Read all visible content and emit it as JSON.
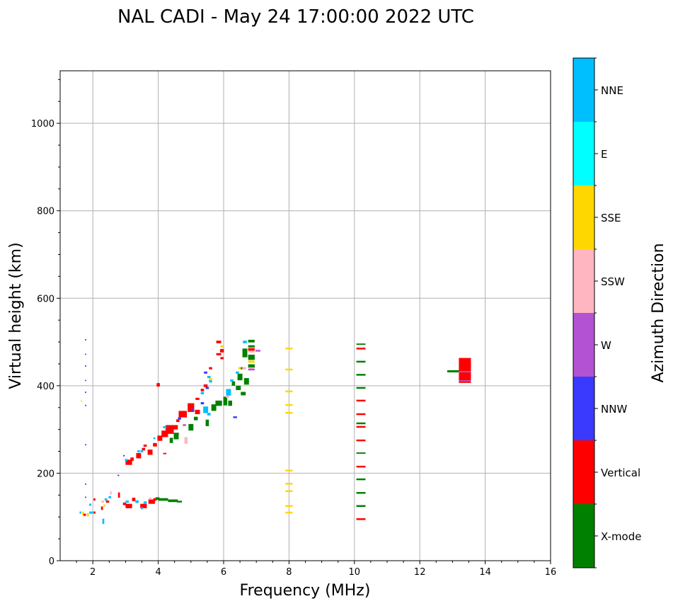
{
  "chart_data": {
    "type": "scatter",
    "title": "NAL CADI - May 24 17:00:00 2022 UTC",
    "xlabel": "Frequency (MHz)",
    "ylabel": "Virtual height (km)",
    "xlim": [
      1,
      16
    ],
    "ylim": [
      0,
      1120
    ],
    "xticks": [
      "2",
      "4",
      "6",
      "8",
      "10",
      "12",
      "14",
      "16"
    ],
    "yticks": [
      "0",
      "200",
      "400",
      "600",
      "800",
      "1000"
    ],
    "grid": true,
    "colorbar": {
      "label": "Azimuth Direction",
      "categories": [
        "X-mode",
        "Vertical",
        "NNW",
        "W",
        "SSW",
        "SSE",
        "E",
        "NNE"
      ],
      "colors": [
        "#008000",
        "#ff0000",
        "#3a3aff",
        "#b452d4",
        "#ffb6c1",
        "#ffd700",
        "#00ffff",
        "#00bfff"
      ]
    },
    "points_format": [
      "freq_MHz",
      "height_km",
      "direction_index",
      "freq_width_MHz",
      "height_span_km"
    ],
    "points": [
      [
        1.78,
        505,
        2,
        0.04,
        3
      ],
      [
        1.78,
        472,
        2,
        0.04,
        2
      ],
      [
        1.78,
        445,
        2,
        0.04,
        3
      ],
      [
        1.78,
        412,
        2,
        0.04,
        2
      ],
      [
        1.78,
        385,
        2,
        0.04,
        3
      ],
      [
        1.78,
        355,
        2,
        0.04,
        3
      ],
      [
        1.65,
        365,
        5,
        0.04,
        3
      ],
      [
        1.78,
        265,
        2,
        0.04,
        3
      ],
      [
        1.78,
        175,
        2,
        0.04,
        3
      ],
      [
        1.78,
        145,
        2,
        0.04,
        3
      ],
      [
        2.78,
        195,
        2,
        0.05,
        3
      ],
      [
        2.95,
        240,
        2,
        0.05,
        3
      ],
      [
        1.7,
        108,
        5,
        0.05,
        8
      ],
      [
        1.62,
        110,
        7,
        0.05,
        5
      ],
      [
        1.75,
        105,
        1,
        0.08,
        5
      ],
      [
        1.85,
        105,
        5,
        0.06,
        8
      ],
      [
        1.95,
        110,
        7,
        0.12,
        5
      ],
      [
        2.05,
        110,
        1,
        0.06,
        5
      ],
      [
        2.05,
        140,
        1,
        0.06,
        5
      ],
      [
        1.92,
        128,
        7,
        0.06,
        5
      ],
      [
        2.3,
        135,
        4,
        0.08,
        5
      ],
      [
        2.28,
        120,
        1,
        0.06,
        8
      ],
      [
        2.32,
        90,
        7,
        0.06,
        12
      ],
      [
        2.35,
        126,
        5,
        0.06,
        5
      ],
      [
        2.45,
        135,
        1,
        0.1,
        5
      ],
      [
        2.55,
        155,
        4,
        0.05,
        8
      ],
      [
        2.52,
        145,
        7,
        0.08,
        5
      ],
      [
        2.4,
        140,
        7,
        0.08,
        5
      ],
      [
        2.8,
        150,
        1,
        0.06,
        12
      ],
      [
        2.97,
        130,
        1,
        0.1,
        6
      ],
      [
        3.1,
        125,
        1,
        0.2,
        10
      ],
      [
        3.05,
        135,
        7,
        0.1,
        5
      ],
      [
        3.25,
        140,
        1,
        0.1,
        8
      ],
      [
        3.35,
        135,
        7,
        0.1,
        6
      ],
      [
        3.55,
        125,
        1,
        0.2,
        10
      ],
      [
        3.5,
        120,
        7,
        0.06,
        5
      ],
      [
        3.6,
        133,
        7,
        0.1,
        5
      ],
      [
        3.8,
        135,
        1,
        0.2,
        10
      ],
      [
        3.9,
        140,
        1,
        0.1,
        6
      ],
      [
        3.75,
        142,
        4,
        0.08,
        5
      ],
      [
        3.98,
        142,
        0,
        0.12,
        6
      ],
      [
        4.15,
        140,
        0,
        0.3,
        6
      ],
      [
        4.45,
        137,
        0,
        0.3,
        6
      ],
      [
        4.65,
        135,
        0,
        0.15,
        4
      ],
      [
        3.1,
        225,
        1,
        0.2,
        12
      ],
      [
        3.2,
        232,
        1,
        0.1,
        8
      ],
      [
        3.02,
        230,
        7,
        0.08,
        5
      ],
      [
        3.4,
        240,
        1,
        0.15,
        12
      ],
      [
        3.4,
        250,
        7,
        0.08,
        5
      ],
      [
        3.55,
        255,
        1,
        0.1,
        6
      ],
      [
        3.6,
        263,
        1,
        0.1,
        5
      ],
      [
        3.5,
        250,
        7,
        0.08,
        5
      ],
      [
        3.75,
        248,
        1,
        0.15,
        12
      ],
      [
        3.9,
        265,
        1,
        0.12,
        8
      ],
      [
        3.88,
        280,
        7,
        0.06,
        4
      ],
      [
        4.05,
        280,
        1,
        0.15,
        12
      ],
      [
        4.2,
        290,
        1,
        0.2,
        15
      ],
      [
        4.35,
        300,
        1,
        0.25,
        20
      ],
      [
        4.2,
        305,
        7,
        0.1,
        5
      ],
      [
        4.5,
        305,
        1,
        0.2,
        10
      ],
      [
        4.6,
        320,
        1,
        0.1,
        6
      ],
      [
        4.75,
        335,
        1,
        0.25,
        15
      ],
      [
        4.65,
        325,
        2,
        0.1,
        5
      ],
      [
        4.6,
        290,
        4,
        0.1,
        5
      ],
      [
        4.4,
        275,
        0,
        0.1,
        12
      ],
      [
        4.55,
        285,
        0,
        0.15,
        15
      ],
      [
        4.85,
        275,
        4,
        0.1,
        15
      ],
      [
        5.0,
        305,
        0,
        0.15,
        15
      ],
      [
        5.0,
        350,
        1,
        0.2,
        20
      ],
      [
        5.05,
        345,
        2,
        0.1,
        5
      ],
      [
        4.8,
        310,
        3,
        0.1,
        4
      ],
      [
        5.2,
        340,
        1,
        0.15,
        10
      ],
      [
        5.15,
        325,
        0,
        0.12,
        8
      ],
      [
        5.35,
        360,
        2,
        0.1,
        5
      ],
      [
        5.45,
        345,
        7,
        0.15,
        15
      ],
      [
        5.5,
        315,
        0,
        0.1,
        15
      ],
      [
        5.55,
        335,
        7,
        0.1,
        6
      ],
      [
        5.7,
        350,
        0,
        0.15,
        15
      ],
      [
        5.85,
        360,
        0,
        0.2,
        12
      ],
      [
        5.2,
        370,
        1,
        0.12,
        5
      ],
      [
        5.35,
        390,
        1,
        0.1,
        6
      ],
      [
        5.35,
        383,
        7,
        0.1,
        5
      ],
      [
        5.45,
        400,
        1,
        0.12,
        6
      ],
      [
        5.5,
        395,
        2,
        0.1,
        5
      ],
      [
        5.45,
        430,
        2,
        0.1,
        5
      ],
      [
        5.55,
        420,
        7,
        0.1,
        5
      ],
      [
        5.6,
        440,
        1,
        0.1,
        5
      ],
      [
        5.6,
        410,
        7,
        0.1,
        5
      ],
      [
        5.6,
        415,
        5,
        0.1,
        5
      ],
      [
        5.85,
        500,
        1,
        0.15,
        6
      ],
      [
        5.95,
        480,
        1,
        0.12,
        8
      ],
      [
        5.95,
        490,
        5,
        0.1,
        5
      ],
      [
        5.95,
        463,
        1,
        0.1,
        5
      ],
      [
        5.85,
        472,
        1,
        0.15,
        5
      ],
      [
        6.05,
        365,
        0,
        0.12,
        20
      ],
      [
        6.15,
        385,
        7,
        0.15,
        15
      ],
      [
        6.2,
        360,
        0,
        0.12,
        12
      ],
      [
        6.12,
        375,
        4,
        0.1,
        5
      ],
      [
        6.3,
        405,
        0,
        0.1,
        10
      ],
      [
        6.25,
        412,
        7,
        0.1,
        5
      ],
      [
        6.45,
        395,
        0,
        0.15,
        10
      ],
      [
        6.5,
        420,
        0,
        0.15,
        15
      ],
      [
        6.42,
        430,
        7,
        0.1,
        5
      ],
      [
        6.5,
        440,
        5,
        0.1,
        5
      ],
      [
        6.6,
        440,
        0,
        0.15,
        5
      ],
      [
        6.65,
        475,
        0,
        0.15,
        20
      ],
      [
        6.65,
        500,
        7,
        0.12,
        6
      ],
      [
        6.85,
        502,
        0,
        0.2,
        6
      ],
      [
        6.85,
        490,
        0,
        0.2,
        5
      ],
      [
        6.85,
        483,
        1,
        0.2,
        6
      ],
      [
        6.85,
        478,
        4,
        0.2,
        4
      ],
      [
        6.85,
        465,
        0,
        0.2,
        12
      ],
      [
        6.85,
        455,
        5,
        0.2,
        5
      ],
      [
        6.85,
        445,
        0,
        0.2,
        8
      ],
      [
        7.05,
        480,
        3,
        0.15,
        4
      ],
      [
        6.85,
        440,
        4,
        0.15,
        4
      ],
      [
        6.85,
        437,
        3,
        0.2,
        4
      ],
      [
        6.7,
        410,
        0,
        0.15,
        15
      ],
      [
        6.62,
        440,
        4,
        0.1,
        5
      ],
      [
        6.6,
        382,
        0,
        0.15,
        8
      ],
      [
        6.35,
        328,
        2,
        0.12,
        4
      ],
      [
        4.0,
        402,
        1,
        0.1,
        8
      ],
      [
        4.2,
        245,
        1,
        0.1,
        3
      ],
      [
        8.0,
        485,
        5,
        0.22,
        4
      ],
      [
        8.0,
        437,
        5,
        0.22,
        4
      ],
      [
        8.0,
        387,
        5,
        0.22,
        4
      ],
      [
        8.0,
        356,
        5,
        0.22,
        4
      ],
      [
        8.0,
        338,
        5,
        0.22,
        4
      ],
      [
        8.0,
        206,
        5,
        0.22,
        4
      ],
      [
        8.0,
        176,
        5,
        0.22,
        4
      ],
      [
        8.0,
        159,
        5,
        0.22,
        4
      ],
      [
        8.0,
        125,
        5,
        0.22,
        4
      ],
      [
        8.0,
        110,
        5,
        0.22,
        4
      ],
      [
        10.2,
        495,
        0,
        0.28,
        3
      ],
      [
        10.2,
        485,
        1,
        0.28,
        4
      ],
      [
        10.2,
        455,
        0,
        0.28,
        4
      ],
      [
        10.2,
        425,
        0,
        0.28,
        4
      ],
      [
        10.2,
        395,
        0,
        0.28,
        4
      ],
      [
        10.2,
        366,
        1,
        0.28,
        4
      ],
      [
        10.2,
        335,
        1,
        0.28,
        4
      ],
      [
        10.2,
        314,
        0,
        0.28,
        4
      ],
      [
        10.2,
        306,
        1,
        0.28,
        4
      ],
      [
        10.2,
        275,
        1,
        0.28,
        4
      ],
      [
        10.2,
        246,
        0,
        0.28,
        3
      ],
      [
        10.2,
        215,
        1,
        0.28,
        4
      ],
      [
        10.2,
        186,
        0,
        0.28,
        4
      ],
      [
        10.2,
        155,
        0,
        0.28,
        4
      ],
      [
        10.2,
        125,
        0,
        0.28,
        4
      ],
      [
        10.2,
        95,
        1,
        0.28,
        4
      ],
      [
        13.02,
        433,
        0,
        0.36,
        5
      ],
      [
        13.38,
        435,
        1,
        0.37,
        57
      ],
      [
        13.38,
        432,
        3,
        0.37,
        3
      ],
      [
        13.38,
        411,
        3,
        0.37,
        3
      ]
    ]
  }
}
